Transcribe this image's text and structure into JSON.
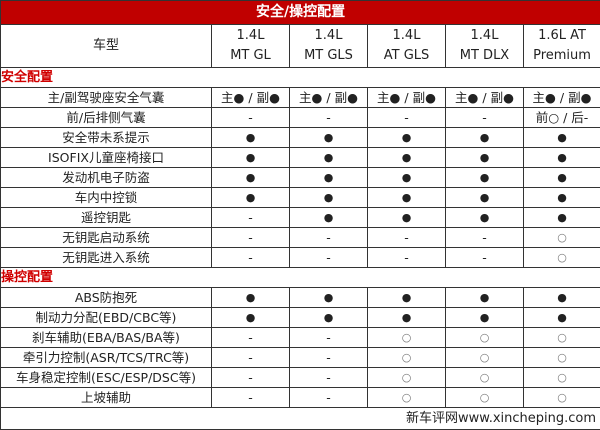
{
  "title": "安全/操控配置",
  "header": {
    "label": "车型",
    "models": [
      {
        "line1": "1.4L",
        "line2": "MT GL"
      },
      {
        "line1": "1.4L",
        "line2": "MT GLS"
      },
      {
        "line1": "1.4L",
        "line2": "AT GLS"
      },
      {
        "line1": "1.4L",
        "line2": "MT DLX"
      },
      {
        "line1": "1.6L AT",
        "line2": "Premium"
      }
    ]
  },
  "sections": [
    {
      "name": "安全配置",
      "rows": [
        {
          "label": "主/副驾驶座安全气囊",
          "values": [
            "主● / 副●",
            "主● / 副●",
            "主● / 副●",
            "主● / 副●",
            "主● / 副●"
          ]
        },
        {
          "label": "前/后排侧气囊",
          "values": [
            "-",
            "-",
            "-",
            "-",
            "前○ / 后-"
          ]
        },
        {
          "label": "安全带未系提示",
          "values": [
            "●",
            "●",
            "●",
            "●",
            "●"
          ]
        },
        {
          "label": "ISOFIX儿童座椅接口",
          "values": [
            "●",
            "●",
            "●",
            "●",
            "●"
          ]
        },
        {
          "label": "发动机电子防盗",
          "values": [
            "●",
            "●",
            "●",
            "●",
            "●"
          ]
        },
        {
          "label": "车内中控锁",
          "values": [
            "●",
            "●",
            "●",
            "●",
            "●"
          ]
        },
        {
          "label": "遥控钥匙",
          "values": [
            "-",
            "●",
            "●",
            "●",
            "●"
          ]
        },
        {
          "label": "无钥匙启动系统",
          "values": [
            "-",
            "-",
            "-",
            "-",
            "○"
          ]
        },
        {
          "label": "无钥匙进入系统",
          "values": [
            "-",
            "-",
            "-",
            "-",
            "○"
          ]
        }
      ]
    },
    {
      "name": "操控配置",
      "rows": [
        {
          "label": "ABS防抱死",
          "values": [
            "●",
            "●",
            "●",
            "●",
            "●"
          ]
        },
        {
          "label": "制动力分配(EBD/CBC等)",
          "values": [
            "●",
            "●",
            "●",
            "●",
            "●"
          ]
        },
        {
          "label": "刹车辅助(EBA/BAS/BA等)",
          "values": [
            "-",
            "-",
            "○",
            "○",
            "○"
          ]
        },
        {
          "label": "牵引力控制(ASR/TCS/TRC等)",
          "values": [
            "-",
            "-",
            "○",
            "○",
            "○"
          ]
        },
        {
          "label": "车身稳定控制(ESC/ESP/DSC等)",
          "values": [
            "-",
            "-",
            "○",
            "○",
            "○"
          ]
        },
        {
          "label": "上坡辅助",
          "values": [
            "-",
            "-",
            "○",
            "○",
            "○"
          ]
        }
      ]
    }
  ],
  "footer": "新车评网www.xincheping.com",
  "colors": {
    "title_bg": "#c00000",
    "section_text": "#d00000"
  }
}
